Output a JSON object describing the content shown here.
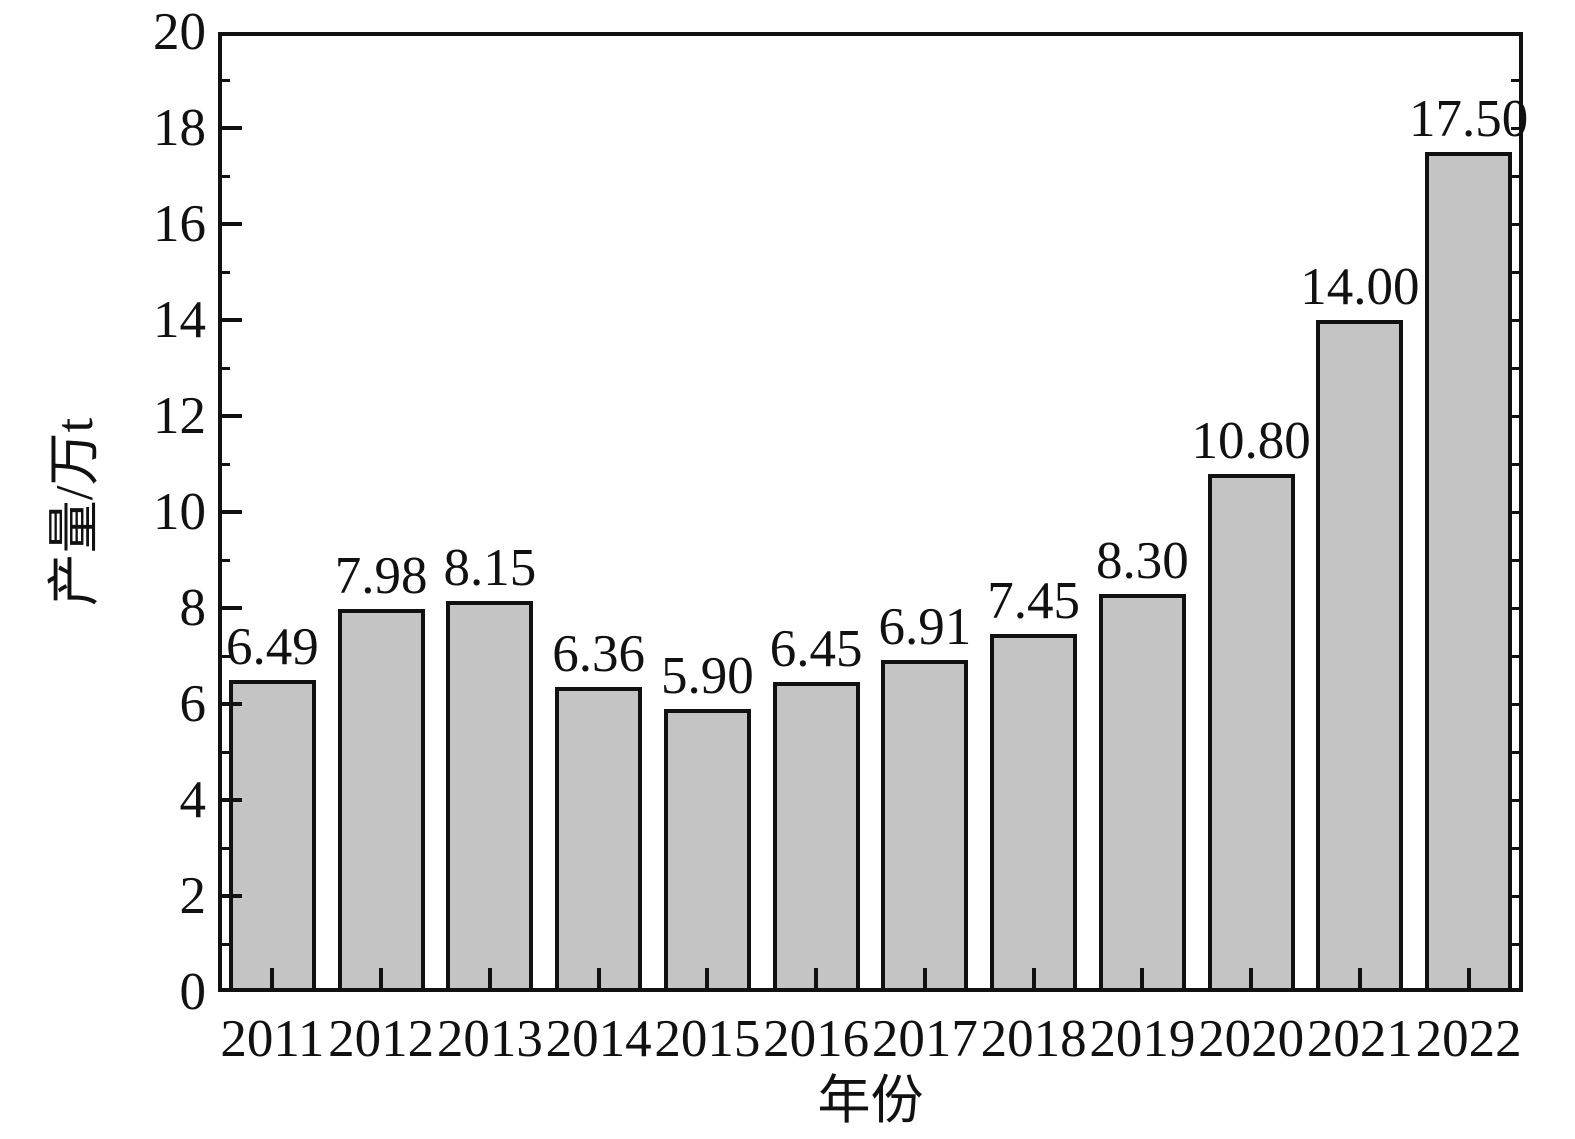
{
  "chart_data": {
    "type": "bar",
    "title": "",
    "xlabel": "年份",
    "ylabel": "产量/万t",
    "categories": [
      "2011",
      "2012",
      "2013",
      "2014",
      "2015",
      "2016",
      "2017",
      "2018",
      "2019",
      "2020",
      "2021",
      "2022"
    ],
    "values": [
      6.49,
      7.98,
      8.15,
      6.36,
      5.9,
      6.45,
      6.91,
      7.45,
      8.3,
      10.8,
      14.0,
      17.5
    ],
    "value_labels": [
      "6.49",
      "7.98",
      "8.15",
      "6.36",
      "5.90",
      "6.45",
      "6.91",
      "7.45",
      "8.30",
      "10.80",
      "14.00",
      "17.50"
    ],
    "ylim": [
      0,
      20
    ],
    "ytick_major_interval": 2,
    "ytick_minor_interval": 1,
    "ytick_labels": [
      "0",
      "2",
      "4",
      "6",
      "8",
      "10",
      "12",
      "14",
      "16",
      "18",
      "20"
    ],
    "grid": false,
    "legend": null,
    "bar_fill_color": "#c4c4c4",
    "bar_stroke_color": "#111111",
    "axis_color": "#111111",
    "background_color": "#ffffff"
  }
}
